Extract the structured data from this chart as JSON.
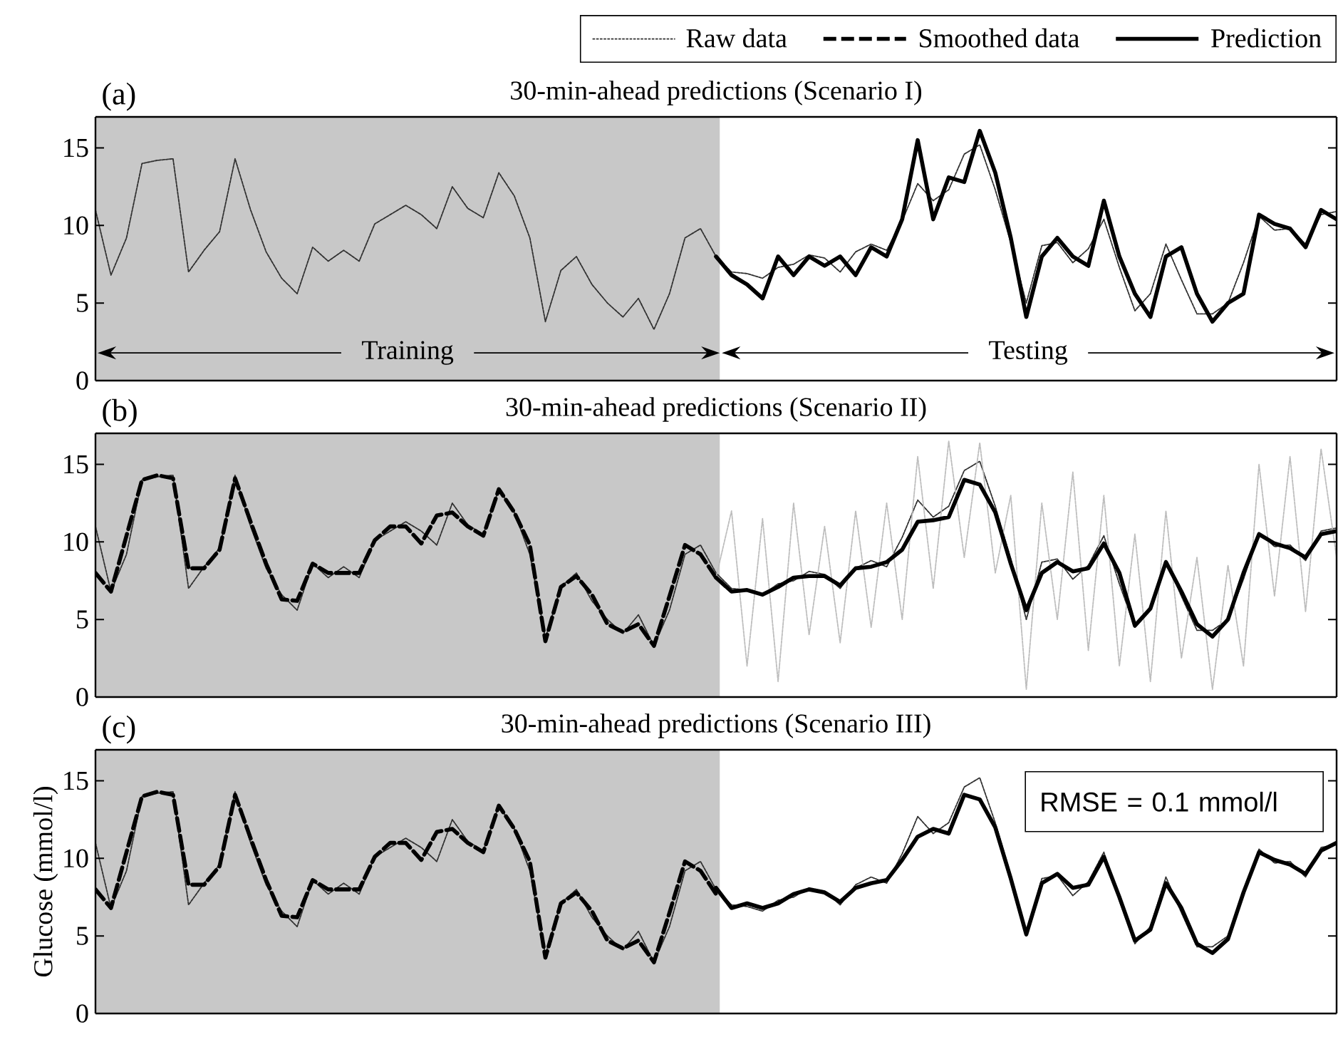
{
  "chart_data": [
    {
      "type": "line",
      "title": "30-min-ahead predictions (Scenario I)",
      "annotations": [
        "(a)",
        {
          "text": "Training"
        },
        {
          "text": "Testing"
        }
      ],
      "categories": [
        null,
        null,
        null,
        null,
        null,
        null,
        null,
        null,
        null,
        null,
        null,
        null,
        null,
        null,
        null,
        null,
        null,
        null,
        null,
        null,
        null,
        null,
        null,
        null,
        null,
        null,
        null,
        null,
        null,
        null,
        null,
        null,
        null,
        null,
        null,
        null,
        null,
        null,
        null,
        null,
        null,
        null,
        null,
        null,
        null,
        null,
        null,
        null,
        null,
        null,
        null,
        null,
        null,
        null,
        null,
        null,
        null,
        null,
        null,
        null,
        null,
        null,
        null,
        null,
        null,
        null,
        null,
        null,
        null,
        null,
        null,
        null,
        null,
        null,
        null,
        null,
        null,
        null,
        null,
        null,
        null
      ],
      "ylim": [
        0,
        17
      ],
      "yticks": [
        0,
        5,
        10,
        15
      ],
      "tick_labels": "y",
      "legend": "top right",
      "series": [
        {
          "name": "Raw data",
          "color": "#303030",
          "line_style": "dotted",
          "values": [
            11.0,
            6.8,
            9.2,
            14.0,
            14.2,
            14.3,
            7.0,
            8.4,
            9.6,
            14.3,
            11.0,
            8.3,
            6.6,
            5.6,
            8.6,
            7.7,
            8.4,
            7.7,
            10.1,
            10.7,
            11.3,
            10.7,
            9.8,
            12.5,
            11.1,
            10.5,
            13.4,
            11.9,
            9.2,
            3.8,
            7.1,
            8.0,
            6.2,
            5.0,
            4.1,
            5.3,
            3.3,
            5.6,
            9.2,
            9.8,
            8.0,
            7.0,
            6.9,
            6.6,
            7.3,
            7.5,
            8.1,
            7.9,
            7.0,
            8.3,
            8.8,
            8.4,
            10.3,
            12.7,
            11.6,
            12.3,
            14.6,
            15.2,
            12.3,
            8.9,
            5.0,
            8.7,
            8.9,
            7.6,
            8.5,
            10.4,
            7.3,
            4.5,
            5.6,
            8.8,
            6.5,
            4.3,
            4.3,
            5.0,
            7.6,
            10.6,
            9.7,
            9.8,
            8.8,
            10.7,
            10.9
          ]
        },
        {
          "color": "#000000",
          "line_style": "solid",
          "values": [
            null,
            null,
            null,
            null,
            null,
            null,
            null,
            null,
            null,
            null,
            null,
            null,
            null,
            null,
            null,
            null,
            null,
            null,
            null,
            null,
            null,
            null,
            null,
            null,
            null,
            null,
            null,
            null,
            null,
            null,
            null,
            null,
            null,
            null,
            null,
            null,
            null,
            null,
            null,
            null,
            8.0,
            6.8,
            6.2,
            5.3,
            8.0,
            6.8,
            8.0,
            7.4,
            8.0,
            6.8,
            8.6,
            8.0,
            10.4,
            15.5,
            10.4,
            13.1,
            12.8,
            16.1,
            13.4,
            9.2,
            4.1,
            8.0,
            9.2,
            8.0,
            7.4,
            11.6,
            8.0,
            5.6,
            4.1,
            8.0,
            8.6,
            5.6,
            3.8,
            5.0,
            5.6,
            10.7,
            10.1,
            9.8,
            8.6,
            11.0,
            10.4
          ]
        }
      ]
    },
    {
      "type": "line",
      "title": "30-min-ahead predictions (Scenario II)",
      "annotations": [
        "(b)"
      ],
      "categories": [
        null,
        null,
        null,
        null,
        null,
        null,
        null,
        null,
        null,
        null,
        null,
        null,
        null,
        null,
        null,
        null,
        null,
        null,
        null,
        null,
        null,
        null,
        null,
        null,
        null,
        null,
        null,
        null,
        null,
        null,
        null,
        null,
        null,
        null,
        null,
        null,
        null,
        null,
        null,
        null,
        null,
        null,
        null,
        null,
        null,
        null,
        null,
        null,
        null,
        null,
        null,
        null,
        null,
        null,
        null,
        null,
        null,
        null,
        null,
        null,
        null,
        null,
        null,
        null,
        null,
        null,
        null,
        null,
        null,
        null,
        null,
        null,
        null,
        null,
        null,
        null,
        null,
        null,
        null,
        null,
        null
      ],
      "ylim": [
        0,
        17
      ],
      "yticks": [
        0,
        5,
        10,
        15
      ],
      "tick_labels": "y",
      "series": [
        {
          "color": "#303030",
          "line_style": "dotted",
          "values": [
            11.0,
            6.8,
            9.2,
            14.0,
            14.2,
            14.3,
            7.0,
            8.4,
            9.6,
            14.3,
            11.0,
            8.3,
            6.6,
            5.6,
            8.6,
            7.7,
            8.4,
            7.7,
            10.1,
            10.7,
            11.3,
            10.7,
            9.8,
            12.5,
            11.1,
            10.5,
            13.4,
            11.9,
            9.2,
            3.8,
            7.1,
            8.0,
            6.2,
            5.0,
            4.1,
            5.3,
            3.3,
            5.6,
            9.2,
            9.8,
            8.0,
            7.0,
            6.9,
            6.6,
            7.3,
            7.5,
            8.1,
            7.9,
            7.0,
            8.3,
            8.8,
            8.4,
            10.3,
            12.7,
            11.6,
            12.3,
            14.6,
            15.2,
            12.3,
            8.9,
            5.0,
            8.7,
            8.9,
            7.6,
            8.5,
            10.4,
            7.3,
            4.5,
            5.6,
            8.8,
            6.5,
            4.3,
            4.3,
            5.0,
            7.6,
            10.6,
            9.7,
            9.8,
            8.8,
            10.7,
            10.9
          ]
        },
        {
          "name": "Smoothed data",
          "color": "#000000",
          "line_style": "dashed",
          "values": [
            8.0,
            6.8,
            10.4,
            14.0,
            14.3,
            14.1,
            8.3,
            8.3,
            9.5,
            14.1,
            11.3,
            8.6,
            6.3,
            6.2,
            8.6,
            8.0,
            8.0,
            8.0,
            10.1,
            11.0,
            11.0,
            9.9,
            11.7,
            11.9,
            11.0,
            10.4,
            13.4,
            11.9,
            9.8,
            3.6,
            7.1,
            7.8,
            6.6,
            4.7,
            4.2,
            4.7,
            3.3,
            6.5,
            9.8,
            9.2,
            7.7,
            null,
            null,
            null,
            null,
            null,
            null,
            null,
            null,
            null,
            null,
            null,
            null,
            null,
            null,
            null,
            null,
            null,
            null,
            null,
            null,
            null,
            null,
            null,
            null,
            null,
            null,
            null,
            null,
            null,
            null,
            null,
            null,
            null,
            null,
            null,
            null,
            null,
            null,
            null,
            null
          ]
        },
        {
          "color": "#bdbdbd",
          "line_style": "dotted",
          "values": [
            null,
            null,
            null,
            null,
            null,
            null,
            null,
            null,
            null,
            null,
            null,
            null,
            null,
            null,
            null,
            null,
            null,
            null,
            null,
            null,
            null,
            null,
            null,
            null,
            null,
            null,
            null,
            null,
            null,
            null,
            null,
            null,
            null,
            null,
            null,
            null,
            null,
            null,
            null,
            null,
            7.7,
            12.0,
            2.0,
            11.5,
            1.0,
            12.5,
            4.0,
            11.0,
            3.5,
            12.0,
            4.5,
            12.5,
            5.0,
            15.5,
            7.0,
            16.5,
            9.0,
            16.4,
            8.0,
            13.0,
            0.5,
            12.5,
            5.0,
            14.5,
            3.0,
            13.0,
            2.0,
            10.5,
            1.0,
            12.0,
            2.5,
            9.0,
            0.5,
            8.5,
            2.0,
            15.0,
            6.5,
            15.5,
            5.5,
            16.0,
            9.0
          ]
        },
        {
          "color": "#000000",
          "line_style": "solid",
          "values": [
            null,
            null,
            null,
            null,
            null,
            null,
            null,
            null,
            null,
            null,
            null,
            null,
            null,
            null,
            null,
            null,
            null,
            null,
            null,
            null,
            null,
            null,
            null,
            null,
            null,
            null,
            null,
            null,
            null,
            null,
            null,
            null,
            null,
            null,
            null,
            null,
            null,
            null,
            null,
            null,
            7.7,
            6.8,
            6.9,
            6.6,
            7.1,
            7.7,
            7.8,
            7.8,
            7.2,
            8.3,
            8.4,
            8.7,
            9.5,
            11.3,
            11.4,
            11.6,
            14.0,
            13.7,
            11.9,
            8.6,
            5.6,
            8.0,
            8.7,
            8.1,
            8.3,
            9.9,
            8.0,
            4.6,
            5.7,
            8.7,
            6.8,
            4.7,
            3.9,
            5.0,
            8.0,
            10.5,
            9.9,
            9.6,
            9.0,
            10.5,
            10.7
          ]
        }
      ]
    },
    {
      "type": "line",
      "title": "30-min-ahead predictions (Scenario III)",
      "ylabel": "Glucose (mmol/l)",
      "annotations": [
        "(c)",
        "RMSE = 0.1 mmol/l"
      ],
      "categories": [
        null,
        null,
        null,
        null,
        null,
        null,
        null,
        null,
        null,
        null,
        null,
        null,
        null,
        null,
        null,
        null,
        null,
        null,
        null,
        null,
        null,
        null,
        null,
        null,
        null,
        null,
        null,
        null,
        null,
        null,
        null,
        null,
        null,
        null,
        null,
        null,
        null,
        null,
        null,
        null,
        null,
        null,
        null,
        null,
        null,
        null,
        null,
        null,
        null,
        null,
        null,
        null,
        null,
        null,
        null,
        null,
        null,
        null,
        null,
        null,
        null,
        null,
        null,
        null,
        null,
        null,
        null,
        null,
        null,
        null,
        null,
        null,
        null,
        null,
        null,
        null,
        null,
        null,
        null,
        null,
        null
      ],
      "ylim": [
        0,
        17
      ],
      "yticks": [
        0,
        5,
        10,
        15
      ],
      "tick_labels": "y",
      "series": [
        {
          "color": "#303030",
          "line_style": "dotted",
          "values": [
            11.0,
            6.8,
            9.2,
            14.0,
            14.2,
            14.3,
            7.0,
            8.4,
            9.6,
            14.3,
            11.0,
            8.3,
            6.6,
            5.6,
            8.6,
            7.7,
            8.4,
            7.7,
            10.1,
            10.7,
            11.3,
            10.7,
            9.8,
            12.5,
            11.1,
            10.5,
            13.4,
            11.9,
            9.2,
            3.8,
            7.1,
            8.0,
            6.2,
            5.0,
            4.1,
            5.3,
            3.3,
            5.6,
            9.2,
            9.8,
            8.0,
            7.0,
            6.9,
            6.6,
            7.3,
            7.5,
            8.1,
            7.9,
            7.0,
            8.3,
            8.8,
            8.4,
            10.3,
            12.7,
            11.6,
            12.3,
            14.6,
            15.2,
            12.3,
            8.9,
            5.0,
            8.7,
            8.9,
            7.6,
            8.5,
            10.4,
            7.3,
            4.5,
            5.6,
            8.8,
            6.5,
            4.3,
            4.3,
            5.0,
            7.6,
            10.6,
            9.7,
            9.8,
            8.8,
            10.7,
            10.9
          ]
        },
        {
          "color": "#000000",
          "line_style": "dashed",
          "values": [
            8.0,
            6.8,
            10.4,
            14.0,
            14.3,
            14.1,
            8.3,
            8.3,
            9.5,
            14.1,
            11.3,
            8.6,
            6.3,
            6.2,
            8.6,
            8.0,
            8.0,
            8.0,
            10.1,
            11.0,
            11.0,
            9.9,
            11.7,
            11.9,
            11.0,
            10.4,
            13.4,
            11.9,
            9.8,
            3.6,
            7.1,
            7.8,
            6.6,
            4.7,
            4.2,
            4.7,
            3.3,
            6.5,
            9.8,
            9.2,
            7.7,
            null,
            null,
            null,
            null,
            null,
            null,
            null,
            null,
            null,
            null,
            null,
            null,
            null,
            null,
            null,
            null,
            null,
            null,
            null,
            null,
            null,
            null,
            null,
            null,
            null,
            null,
            null,
            null,
            null,
            null,
            null,
            null,
            null,
            null,
            null,
            null,
            null,
            null,
            null,
            null
          ]
        },
        {
          "name": "Prediction",
          "color": "#000000",
          "line_style": "solid",
          "values": [
            null,
            null,
            null,
            null,
            null,
            null,
            null,
            null,
            null,
            null,
            null,
            null,
            null,
            null,
            null,
            null,
            null,
            null,
            null,
            null,
            null,
            null,
            null,
            null,
            null,
            null,
            null,
            null,
            null,
            null,
            null,
            null,
            null,
            null,
            null,
            null,
            null,
            null,
            null,
            null,
            8.1,
            6.8,
            7.1,
            6.8,
            7.1,
            7.7,
            8.0,
            7.8,
            7.2,
            8.1,
            8.4,
            8.6,
            9.9,
            11.4,
            11.9,
            11.6,
            14.1,
            13.8,
            12.0,
            8.7,
            5.1,
            8.4,
            9.0,
            8.1,
            8.3,
            10.1,
            7.5,
            4.7,
            5.4,
            8.4,
            6.8,
            4.5,
            3.9,
            4.8,
            7.8,
            10.4,
            9.9,
            9.6,
            9.0,
            10.5,
            11.0
          ]
        }
      ]
    }
  ]
}
